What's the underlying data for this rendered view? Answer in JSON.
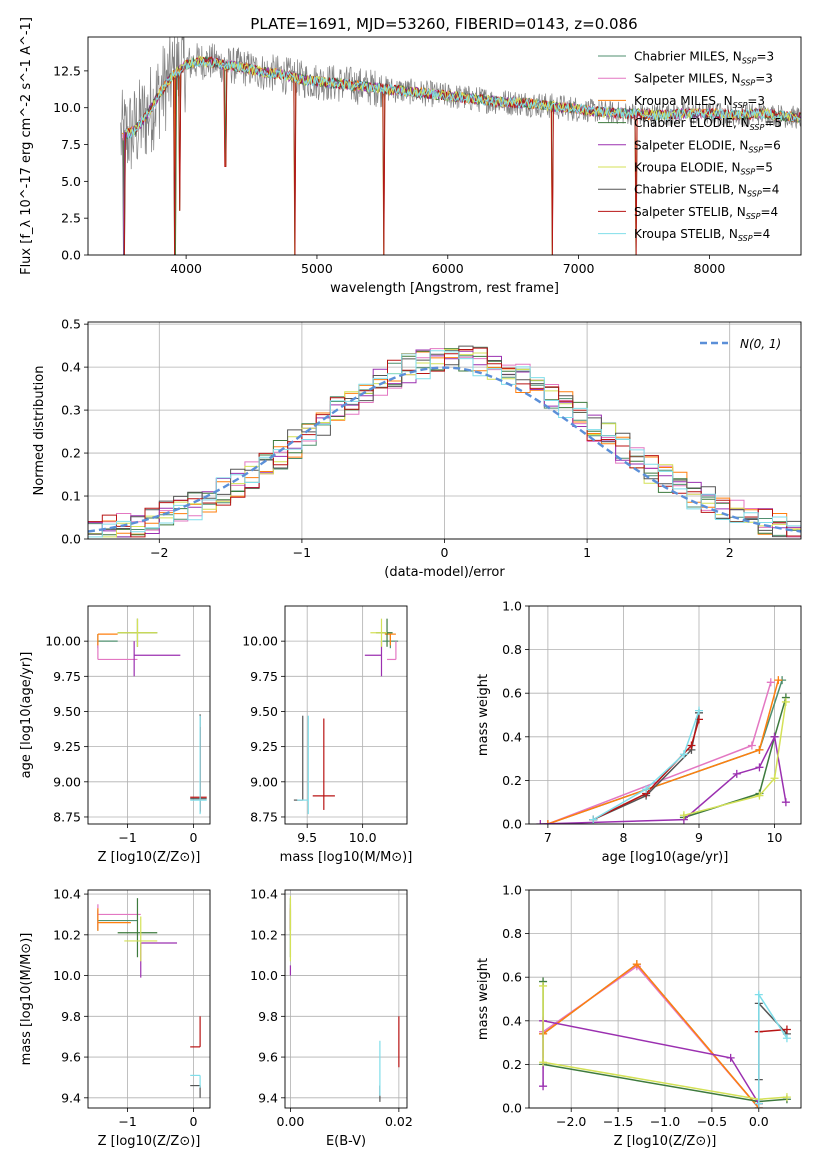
{
  "figure": {
    "title": "PLATE=1691, MJD=53260, FIBERID=0143, z=0.086"
  },
  "colors": {
    "chabrier_miles": "#4f8f6f",
    "salpeter_miles": "#e377c2",
    "kroupa_miles": "#ff7f0e",
    "chabrier_elodie": "#3d7a3d",
    "salpeter_elodie": "#9b30b0",
    "kroupa_elodie": "#d4e157",
    "chabrier_stelib": "#555555",
    "salpeter_stelib": "#b81414",
    "kroupa_stelib": "#80deea",
    "normal": "#5b8fd8",
    "grid": "#b0b0b0"
  },
  "chart_data": [
    {
      "id": "spectrum",
      "type": "line",
      "title": "PLATE=1691, MJD=53260, FIBERID=0143, z=0.086",
      "xlabel": "wavelength [Angstrom, rest frame]",
      "ylabel": "Flux [f_λ 10^-17 erg cm^-2 s^-1 A^-1]",
      "xlim": [
        3250,
        8700
      ],
      "ylim": [
        0,
        14.8
      ],
      "xticks": [
        4000,
        5000,
        6000,
        7000,
        8000
      ],
      "yticks": [
        0.0,
        2.5,
        5.0,
        7.5,
        10.0,
        12.5
      ],
      "grid": false,
      "legend_position": "top-right",
      "legend": [
        {
          "label": "Chabrier MILES, N",
          "sub": "SSP",
          "count": "=3",
          "color_key": "chabrier_miles"
        },
        {
          "label": "Salpeter MILES, N",
          "sub": "SSP",
          "count": "=3",
          "color_key": "salpeter_miles"
        },
        {
          "label": "Kroupa MILES, N",
          "sub": "SSP",
          "count": "=3",
          "color_key": "kroupa_miles"
        },
        {
          "label": "Chabrier ELODIE, N",
          "sub": "SSP",
          "count": "=5",
          "color_key": "chabrier_elodie"
        },
        {
          "label": "Salpeter ELODIE, N",
          "sub": "SSP",
          "count": "=6",
          "color_key": "salpeter_elodie"
        },
        {
          "label": "Kroupa ELODIE, N",
          "sub": "SSP",
          "count": "=5",
          "color_key": "kroupa_elodie"
        },
        {
          "label": "Chabrier STELIB, N",
          "sub": "SSP",
          "count": "=4",
          "color_key": "chabrier_stelib"
        },
        {
          "label": "Salpeter STELIB, N",
          "sub": "SSP",
          "count": "=4",
          "color_key": "salpeter_stelib"
        },
        {
          "label": "Kroupa STELIB, N",
          "sub": "SSP",
          "count": "=4",
          "color_key": "kroupa_stelib"
        }
      ],
      "continuum_x": [
        3500,
        3600,
        3700,
        3800,
        3900,
        4000,
        4100,
        4200,
        4300,
        4400,
        4500,
        4600,
        4700,
        4800,
        4900,
        5000,
        5200,
        5400,
        5600,
        5800,
        6000,
        6200,
        6400,
        6600,
        6800,
        7000,
        7200,
        7400,
        7600,
        7800,
        8000,
        8200,
        8400,
        8700
      ],
      "continuum_y": [
        8.0,
        8.4,
        9.5,
        11.0,
        12.2,
        12.9,
        13.2,
        13.1,
        12.9,
        12.8,
        12.6,
        12.4,
        12.3,
        12.1,
        11.9,
        11.8,
        11.6,
        11.4,
        11.2,
        11.0,
        10.8,
        10.6,
        10.4,
        10.3,
        10.1,
        9.9,
        9.7,
        9.6,
        9.5,
        9.6,
        9.6,
        9.5,
        9.6,
        9.3
      ],
      "dips": [
        {
          "x": 3525,
          "y": 0.0
        },
        {
          "x": 3915,
          "y": 0.0
        },
        {
          "x": 3950,
          "y": 3.0
        },
        {
          "x": 4300,
          "y": 6.0
        },
        {
          "x": 4830,
          "y": 0.0
        },
        {
          "x": 5510,
          "y": 0.0
        },
        {
          "x": 6800,
          "y": 0.0
        },
        {
          "x": 7440,
          "y": 0.0
        }
      ]
    },
    {
      "id": "residuals",
      "type": "line",
      "xlabel": "(data-model)/error",
      "ylabel": "Normed distribution",
      "xlim": [
        -2.5,
        2.5
      ],
      "ylim": [
        0,
        0.505
      ],
      "xticks": [
        -2,
        -1,
        0,
        1,
        2
      ],
      "yticks": [
        0.0,
        0.1,
        0.2,
        0.3,
        0.4,
        0.5
      ],
      "grid": true,
      "legend_position": "top-right",
      "normal_label": "N(0, 1)",
      "bin_width": 0.1,
      "bin_start": -2.5
    },
    {
      "id": "age_vs_Z",
      "type": "scatter",
      "xlabel": "Z [log10(Z/Z⊙)]",
      "ylabel": "age  [log10(age/yr)]",
      "xlim": [
        -1.6,
        0.25
      ],
      "ylim": [
        8.7,
        10.25
      ],
      "xticks": [
        -1,
        0
      ],
      "yticks": [
        8.75,
        9.0,
        9.25,
        9.5,
        9.75,
        10.0
      ],
      "grid": true,
      "points": [
        {
          "key": "chabrier_miles",
          "x": -1.45,
          "y": 10.0,
          "xerr": [
            0.0,
            0.3
          ],
          "yerr": [
            0.05,
            0.05
          ]
        },
        {
          "key": "salpeter_miles",
          "x": -1.45,
          "y": 9.87,
          "xerr": [
            0.0,
            0.6
          ],
          "yerr": [
            0.0,
            0.13
          ]
        },
        {
          "key": "kroupa_miles",
          "x": -1.45,
          "y": 10.05,
          "xerr": [
            0.0,
            0.3
          ],
          "yerr": [
            0.08,
            0.0
          ]
        },
        {
          "key": "chabrier_elodie",
          "x": -0.85,
          "y": 10.06,
          "xerr": [
            0.3,
            0.3
          ],
          "yerr": [
            0.1,
            0.1
          ]
        },
        {
          "key": "salpeter_elodie",
          "x": -0.9,
          "y": 9.9,
          "xerr": [
            0.0,
            0.7
          ],
          "yerr": [
            0.15,
            0.1
          ]
        },
        {
          "key": "kroupa_elodie",
          "x": -0.85,
          "y": 10.06,
          "xerr": [
            0.3,
            0.3
          ],
          "yerr": [
            0.1,
            0.1
          ]
        },
        {
          "key": "chabrier_stelib",
          "x": 0.1,
          "y": 8.88,
          "xerr": [
            0.15,
            0.1
          ],
          "yerr": [
            0.1,
            0.6
          ]
        },
        {
          "key": "salpeter_stelib",
          "x": 0.1,
          "y": 8.89,
          "xerr": [
            0.15,
            0.1
          ],
          "yerr": [
            0.1,
            0.5
          ]
        },
        {
          "key": "kroupa_stelib",
          "x": 0.1,
          "y": 8.87,
          "xerr": [
            0.15,
            0.1
          ],
          "yerr": [
            0.1,
            0.6
          ]
        }
      ]
    },
    {
      "id": "age_vs_mass",
      "type": "scatter",
      "xlabel": "mass [log10(M/M⊙)]",
      "ylabel": "",
      "xlim": [
        9.3,
        10.4
      ],
      "ylim": [
        8.7,
        10.25
      ],
      "xticks": [
        9.5,
        10.0
      ],
      "yticks": [
        8.75,
        9.0,
        9.25,
        9.5,
        9.75,
        10.0
      ],
      "grid": true,
      "points": [
        {
          "key": "chabrier_miles",
          "x": 10.25,
          "y": 10.0,
          "xerr": [
            0.07,
            0.07
          ],
          "yerr": [
            0.05,
            0.05
          ]
        },
        {
          "key": "salpeter_miles",
          "x": 10.3,
          "y": 9.87,
          "xerr": [
            0.08,
            0.0
          ],
          "yerr": [
            0.0,
            0.13
          ]
        },
        {
          "key": "kroupa_miles",
          "x": 10.25,
          "y": 10.05,
          "xerr": [
            0.05,
            0.05
          ],
          "yerr": [
            0.08,
            0.0
          ]
        },
        {
          "key": "chabrier_elodie",
          "x": 10.22,
          "y": 10.06,
          "xerr": [
            0.1,
            0.05
          ],
          "yerr": [
            0.1,
            0.1
          ]
        },
        {
          "key": "salpeter_elodie",
          "x": 10.17,
          "y": 9.9,
          "xerr": [
            0.15,
            0.0
          ],
          "yerr": [
            0.15,
            0.1
          ]
        },
        {
          "key": "kroupa_elodie",
          "x": 10.17,
          "y": 10.06,
          "xerr": [
            0.1,
            0.05
          ],
          "yerr": [
            0.1,
            0.1
          ]
        },
        {
          "key": "chabrier_stelib",
          "x": 9.46,
          "y": 8.87,
          "xerr": [
            0.08,
            0.0
          ],
          "yerr": [
            0.0,
            0.6
          ]
        },
        {
          "key": "salpeter_stelib",
          "x": 9.65,
          "y": 8.9,
          "xerr": [
            0.1,
            0.1
          ],
          "yerr": [
            0.1,
            0.55
          ]
        },
        {
          "key": "kroupa_stelib",
          "x": 9.51,
          "y": 8.87,
          "xerr": [
            0.1,
            0.0
          ],
          "yerr": [
            0.1,
            0.6
          ]
        }
      ]
    },
    {
      "id": "weight_vs_age",
      "type": "line",
      "xlabel": "age  [log10(age/yr)]",
      "ylabel": "mass weight",
      "xlim": [
        6.75,
        10.35
      ],
      "ylim": [
        0,
        1.0
      ],
      "xticks": [
        7,
        8,
        9,
        10
      ],
      "yticks": [
        0.0,
        0.2,
        0.4,
        0.6,
        0.8,
        1.0
      ],
      "grid": true,
      "series": [
        {
          "key": "chabrier_miles",
          "x": [
            7.0,
            9.8,
            10.1
          ],
          "y": [
            0.0,
            0.34,
            0.66
          ]
        },
        {
          "key": "salpeter_miles",
          "x": [
            7.0,
            9.7,
            9.95
          ],
          "y": [
            0.0,
            0.36,
            0.65
          ]
        },
        {
          "key": "kroupa_miles",
          "x": [
            7.0,
            9.8,
            10.05
          ],
          "y": [
            0.0,
            0.34,
            0.66
          ]
        },
        {
          "key": "chabrier_elodie",
          "x": [
            8.8,
            9.8,
            10.0,
            10.15
          ],
          "y": [
            0.03,
            0.14,
            0.4,
            0.58
          ]
        },
        {
          "key": "salpeter_elodie",
          "x": [
            6.9,
            8.8,
            9.5,
            9.8,
            10.0,
            10.15
          ],
          "y": [
            0.0,
            0.02,
            0.23,
            0.26,
            0.4,
            0.1
          ]
        },
        {
          "key": "kroupa_elodie",
          "x": [
            8.8,
            9.8,
            10.0,
            10.15
          ],
          "y": [
            0.04,
            0.13,
            0.21,
            0.56
          ]
        },
        {
          "key": "chabrier_stelib",
          "x": [
            7.6,
            8.3,
            8.9,
            9.0
          ],
          "y": [
            0.02,
            0.13,
            0.34,
            0.51
          ]
        },
        {
          "key": "salpeter_stelib",
          "x": [
            7.6,
            8.3,
            8.9,
            9.0
          ],
          "y": [
            0.02,
            0.14,
            0.36,
            0.48
          ]
        },
        {
          "key": "kroupa_stelib",
          "x": [
            7.6,
            8.3,
            8.8,
            9.0
          ],
          "y": [
            0.02,
            0.16,
            0.32,
            0.52
          ]
        }
      ]
    },
    {
      "id": "mass_vs_Z",
      "type": "scatter",
      "xlabel": "Z [log10(Z/Z⊙)]",
      "ylabel": "mass [log10(M/M⊙)]",
      "xlim": [
        -1.6,
        0.25
      ],
      "ylim": [
        9.35,
        10.42
      ],
      "xticks": [
        -1,
        0
      ],
      "yticks": [
        9.4,
        9.6,
        9.8,
        10.0,
        10.2,
        10.4
      ],
      "grid": true,
      "points": [
        {
          "key": "chabrier_miles",
          "x": -1.45,
          "y": 10.27,
          "xerr": [
            0.0,
            0.6
          ],
          "yerr": [
            0.05,
            0.05
          ]
        },
        {
          "key": "salpeter_miles",
          "x": -1.45,
          "y": 10.3,
          "xerr": [
            0.0,
            0.65
          ],
          "yerr": [
            0.07,
            0.05
          ]
        },
        {
          "key": "kroupa_miles",
          "x": -1.45,
          "y": 10.26,
          "xerr": [
            0.0,
            0.5
          ],
          "yerr": [
            0.04,
            0.07
          ]
        },
        {
          "key": "chabrier_elodie",
          "x": -0.85,
          "y": 10.21,
          "xerr": [
            0.3,
            0.3
          ],
          "yerr": [
            0.12,
            0.17
          ]
        },
        {
          "key": "salpeter_elodie",
          "x": -0.8,
          "y": 10.16,
          "xerr": [
            0.0,
            0.55
          ],
          "yerr": [
            0.17,
            0.0
          ]
        },
        {
          "key": "kroupa_elodie",
          "x": -0.8,
          "y": 10.17,
          "xerr": [
            0.25,
            0.25
          ],
          "yerr": [
            0.1,
            0.12
          ]
        },
        {
          "key": "chabrier_stelib",
          "x": 0.1,
          "y": 9.46,
          "xerr": [
            0.15,
            0.0
          ],
          "yerr": [
            0.06,
            0.0
          ]
        },
        {
          "key": "salpeter_stelib",
          "x": 0.1,
          "y": 9.65,
          "xerr": [
            0.15,
            0.0
          ],
          "yerr": [
            0.0,
            0.15
          ]
        },
        {
          "key": "kroupa_stelib",
          "x": 0.1,
          "y": 9.51,
          "xerr": [
            0.15,
            0.0
          ],
          "yerr": [
            0.06,
            0.0
          ]
        }
      ]
    },
    {
      "id": "mass_vs_ebv",
      "type": "scatter",
      "xlabel": "E(B-V)",
      "ylabel": "",
      "xlim": [
        -0.001,
        0.0215
      ],
      "ylim": [
        9.35,
        10.42
      ],
      "xticks": [
        0.0,
        0.02
      ],
      "yticks": [
        9.4,
        9.6,
        9.8,
        10.0,
        10.2,
        10.4
      ],
      "grid": true,
      "points": [
        {
          "key": "chabrier_miles",
          "x": 0.0,
          "y": 10.27,
          "xerr": [
            0,
            0
          ],
          "yerr": [
            0.05,
            0.05
          ]
        },
        {
          "key": "salpeter_miles",
          "x": 0.0,
          "y": 10.3,
          "xerr": [
            0,
            0
          ],
          "yerr": [
            0.07,
            0.05
          ]
        },
        {
          "key": "kroupa_miles",
          "x": 0.0,
          "y": 10.26,
          "xerr": [
            0,
            0
          ],
          "yerr": [
            0.04,
            0.07
          ]
        },
        {
          "key": "chabrier_elodie",
          "x": 0.0,
          "y": 10.21,
          "xerr": [
            0,
            0
          ],
          "yerr": [
            0.12,
            0.17
          ]
        },
        {
          "key": "salpeter_elodie",
          "x": 0.0,
          "y": 10.05,
          "xerr": [
            0,
            0
          ],
          "yerr": [
            0.05,
            0.0
          ]
        },
        {
          "key": "kroupa_elodie",
          "x": 0.0,
          "y": 10.17,
          "xerr": [
            0,
            0
          ],
          "yerr": [
            0.1,
            0.22
          ]
        },
        {
          "key": "chabrier_stelib",
          "x": 0.0165,
          "y": 9.46,
          "xerr": [
            0,
            0
          ],
          "yerr": [
            0.08,
            0.0
          ]
        },
        {
          "key": "salpeter_stelib",
          "x": 0.02,
          "y": 9.65,
          "xerr": [
            0,
            0
          ],
          "yerr": [
            0.1,
            0.15
          ]
        },
        {
          "key": "kroupa_stelib",
          "x": 0.0165,
          "y": 9.51,
          "xerr": [
            0,
            0
          ],
          "yerr": [
            0.1,
            0.17
          ]
        }
      ]
    },
    {
      "id": "weight_vs_Z",
      "type": "line",
      "xlabel": "Z [log10(Z/Z⊙)]",
      "ylabel": "mass weight",
      "xlim": [
        -2.45,
        0.45
      ],
      "ylim": [
        0,
        1.0
      ],
      "xticks": [
        -2.0,
        -1.5,
        -1.0,
        -0.5,
        0.0
      ],
      "yticks": [
        0.0,
        0.2,
        0.4,
        0.6,
        0.8,
        1.0
      ],
      "grid": true,
      "series": [
        {
          "key": "chabrier_miles",
          "x": [
            -2.3,
            -1.3,
            0.0
          ],
          "y": [
            0.34,
            0.66,
            0.0
          ]
        },
        {
          "key": "salpeter_miles",
          "x": [
            -2.3,
            -1.3,
            0.0
          ],
          "y": [
            0.35,
            0.65,
            0.0
          ]
        },
        {
          "key": "kroupa_miles",
          "x": [
            -2.3,
            -1.3,
            0.0
          ],
          "y": [
            0.34,
            0.66,
            0.0
          ]
        },
        {
          "key": "chabrier_elodie",
          "x": [
            -2.3,
            -2.3,
            0.0,
            0.3
          ],
          "y": [
            0.58,
            0.2,
            0.03,
            0.04
          ]
        },
        {
          "key": "salpeter_elodie",
          "x": [
            -2.3,
            -2.3,
            -0.3,
            0.0
          ],
          "y": [
            0.1,
            0.4,
            0.23,
            0.02
          ]
        },
        {
          "key": "kroupa_elodie",
          "x": [
            -2.3,
            -2.3,
            0.0,
            0.3
          ],
          "y": [
            0.56,
            0.21,
            0.04,
            0.05
          ]
        },
        {
          "key": "chabrier_stelib",
          "x": [
            0.0,
            0.0,
            0.3
          ],
          "y": [
            0.13,
            0.48,
            0.34
          ]
        },
        {
          "key": "salpeter_stelib",
          "x": [
            0.0,
            0.0,
            0.3
          ],
          "y": [
            0.02,
            0.35,
            0.36
          ]
        },
        {
          "key": "kroupa_stelib",
          "x": [
            0.0,
            0.0,
            0.3
          ],
          "y": [
            0.02,
            0.52,
            0.32
          ]
        }
      ]
    }
  ]
}
